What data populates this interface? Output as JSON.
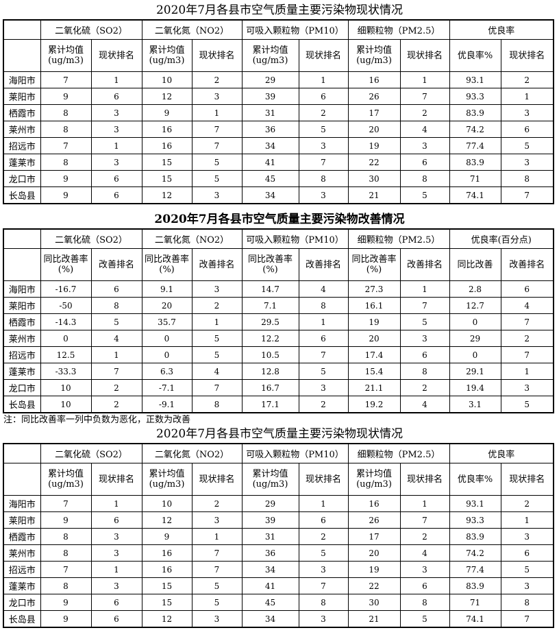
{
  "note": "注：同比改善率一列中负数为恶化，正数为改善",
  "tables": [
    {
      "title": "2020年7月各县市空气质量主要污染物现状情况",
      "group_headers": [
        "二氧化硫（SO2）",
        "二氧化氮（NO2）",
        "可吸入颗粒物（PM10）",
        "细颗粒物（PM2.5）",
        "优良率"
      ],
      "sub_headers": [
        "累计均值\n(ug/m3)",
        "现状排名",
        "累计均值\n(ug/m3)",
        "现状排名",
        "累计均值\n(ug/m3)",
        "现状排名",
        "累计均值\n(ug/m3)",
        "现状排名",
        "优良率%",
        "现状排名"
      ],
      "rows": [
        [
          "海阳市",
          "7",
          "1",
          "10",
          "2",
          "29",
          "1",
          "16",
          "1",
          "93.1",
          "2"
        ],
        [
          "莱阳市",
          "9",
          "6",
          "12",
          "3",
          "39",
          "6",
          "26",
          "7",
          "93.3",
          "1"
        ],
        [
          "栖霞市",
          "8",
          "3",
          "9",
          "1",
          "31",
          "2",
          "17",
          "2",
          "83.9",
          "3"
        ],
        [
          "莱州市",
          "8",
          "3",
          "16",
          "7",
          "36",
          "5",
          "20",
          "4",
          "74.2",
          "6"
        ],
        [
          "招远市",
          "7",
          "1",
          "16",
          "7",
          "34",
          "3",
          "19",
          "3",
          "77.4",
          "5"
        ],
        [
          "蓬莱市",
          "8",
          "3",
          "15",
          "5",
          "41",
          "7",
          "22",
          "6",
          "83.9",
          "3"
        ],
        [
          "龙口市",
          "9",
          "6",
          "15",
          "5",
          "45",
          "8",
          "30",
          "8",
          "71",
          "8"
        ],
        [
          "长岛县",
          "9",
          "6",
          "12",
          "3",
          "34",
          "3",
          "21",
          "5",
          "74.1",
          "7"
        ]
      ]
    },
    {
      "title": "2020年7月各县市空气质量主要污染物改善情况",
      "group_headers": [
        "二氧化硫（SO2）",
        "二氧化氮（NO2）",
        "可吸入颗粒物（PM10）",
        "细颗粒物（PM2.5）",
        "优良率(百分点)"
      ],
      "sub_headers": [
        "同比改善率\n(%)",
        "改善排名",
        "同比改善率\n(%)",
        "改善排名",
        "同比改善率\n(%)",
        "改善排名",
        "同比改善率\n(%)",
        "改善排名",
        "同比改善",
        "改善排名"
      ],
      "rows": [
        [
          "海阳市",
          "-16.7",
          "6",
          "9.1",
          "3",
          "14.7",
          "4",
          "27.3",
          "1",
          "2.8",
          "6"
        ],
        [
          "莱阳市",
          "-50",
          "8",
          "20",
          "2",
          "7.1",
          "8",
          "16.1",
          "7",
          "12.7",
          "4"
        ],
        [
          "栖霞市",
          "-14.3",
          "5",
          "35.7",
          "1",
          "29.5",
          "1",
          "19",
          "5",
          "0",
          "7"
        ],
        [
          "莱州市",
          "0",
          "4",
          "0",
          "5",
          "12.2",
          "6",
          "20",
          "3",
          "29",
          "2"
        ],
        [
          "招远市",
          "12.5",
          "1",
          "0",
          "5",
          "10.5",
          "7",
          "17.4",
          "6",
          "0",
          "7"
        ],
        [
          "蓬莱市",
          "-33.3",
          "7",
          "6.3",
          "4",
          "12.8",
          "5",
          "15.4",
          "8",
          "29.1",
          "1"
        ],
        [
          "龙口市",
          "10",
          "2",
          "-7.1",
          "7",
          "16.7",
          "3",
          "21.1",
          "2",
          "19.4",
          "3"
        ],
        [
          "长岛县",
          "10",
          "2",
          "-9.1",
          "8",
          "17.1",
          "2",
          "19.2",
          "4",
          "3.1",
          "5"
        ]
      ]
    },
    {
      "title": "2020年7月各县市空气质量主要污染物现状情况",
      "group_headers": [
        "二氧化硫（SO2）",
        "二氧化氮（NO2）",
        "可吸入颗粒物（PM10）",
        "细颗粒物（PM2.5）",
        "优良率"
      ],
      "sub_headers": [
        "累计均值\n(ug/m3)",
        "现状排名",
        "累计均值\n(ug/m3)",
        "现状排名",
        "累计均值\n(ug/m3)",
        "现状排名",
        "累计均值\n(ug/m3)",
        "现状排名",
        "优良率%",
        "现状排名"
      ],
      "rows": [
        [
          "海阳市",
          "7",
          "1",
          "10",
          "2",
          "29",
          "1",
          "16",
          "1",
          "93.1",
          "2"
        ],
        [
          "莱阳市",
          "9",
          "6",
          "12",
          "3",
          "39",
          "6",
          "26",
          "7",
          "93.3",
          "1"
        ],
        [
          "栖霞市",
          "8",
          "3",
          "9",
          "1",
          "31",
          "2",
          "17",
          "2",
          "83.9",
          "3"
        ],
        [
          "莱州市",
          "8",
          "3",
          "16",
          "7",
          "36",
          "5",
          "20",
          "4",
          "74.2",
          "6"
        ],
        [
          "招远市",
          "7",
          "1",
          "16",
          "7",
          "34",
          "3",
          "19",
          "3",
          "77.4",
          "5"
        ],
        [
          "蓬莱市",
          "8",
          "3",
          "15",
          "5",
          "41",
          "7",
          "22",
          "6",
          "83.9",
          "3"
        ],
        [
          "龙口市",
          "9",
          "6",
          "15",
          "5",
          "45",
          "8",
          "30",
          "8",
          "71",
          "8"
        ],
        [
          "长岛县",
          "9",
          "6",
          "12",
          "3",
          "34",
          "3",
          "21",
          "5",
          "74.1",
          "7"
        ]
      ]
    }
  ]
}
